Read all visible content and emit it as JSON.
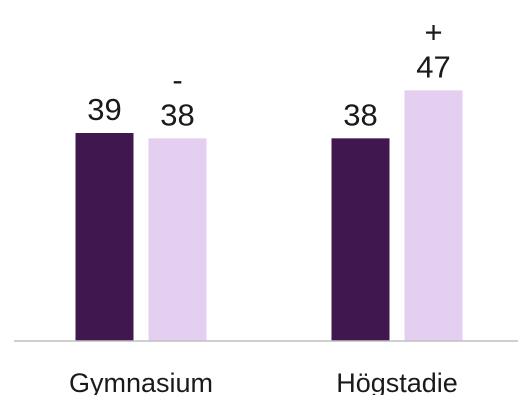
{
  "chart_data": {
    "type": "bar",
    "categories": [
      "Gymnasium",
      "Högstadie"
    ],
    "series": [
      {
        "values": [
          39,
          38
        ],
        "color": "#40174f"
      },
      {
        "values": [
          38,
          47
        ],
        "color": "#e4cff0"
      }
    ],
    "markers": [
      [
        "",
        ""
      ],
      [
        "-",
        "+"
      ]
    ],
    "ylim": [
      0,
      60
    ],
    "grid": false,
    "legend": "none",
    "baseline_color": "#bfbfbf"
  }
}
